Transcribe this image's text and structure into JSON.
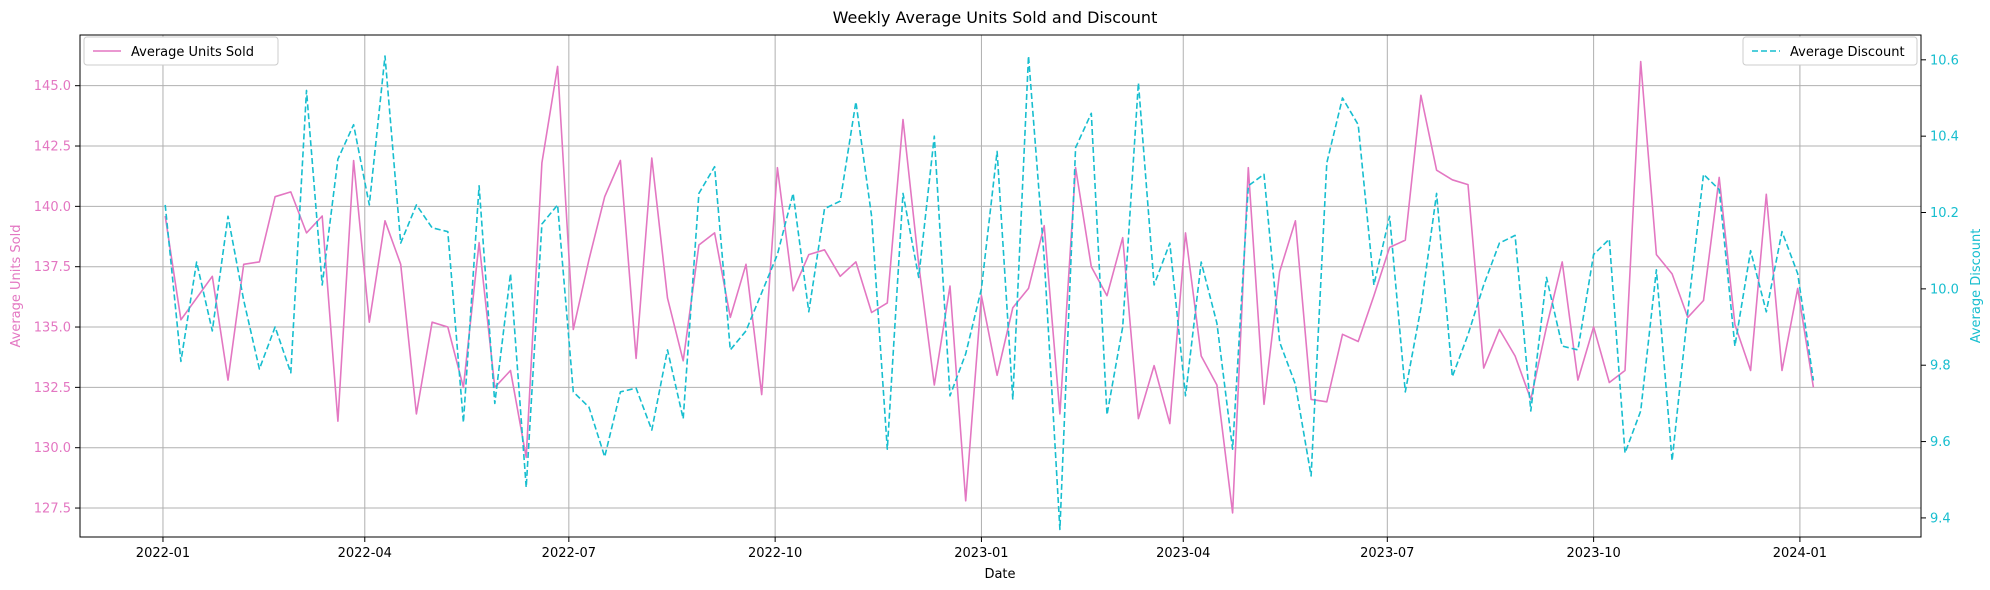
{
  "chart_data": {
    "type": "line",
    "title": "Weekly Average Units Sold and Discount",
    "xlabel": "Date",
    "ylabel_left": "Average Units Sold",
    "ylabel_right": "Average Discount",
    "xlim": [
      "2021-11-25",
      "2024-02-24"
    ],
    "ylim_left": [
      126.3,
      147.1
    ],
    "ylim_right": [
      9.35,
      10.665
    ],
    "x_ticks": [
      "2022-01",
      "2022-04",
      "2022-07",
      "2022-10",
      "2023-01",
      "2023-04",
      "2023-07",
      "2023-10",
      "2024-01"
    ],
    "x_tick_dates": [
      "2022-01-01",
      "2022-04-01",
      "2022-07-01",
      "2022-10-01",
      "2023-01-01",
      "2023-04-01",
      "2023-07-01",
      "2023-10-01",
      "2024-01-01"
    ],
    "y_ticks_left": [
      "127.5",
      "130.0",
      "132.5",
      "135.0",
      "137.5",
      "140.0",
      "142.5",
      "145.0"
    ],
    "y_ticks_right": [
      "9.4",
      "9.6",
      "9.8",
      "10.0",
      "10.2",
      "10.4",
      "10.6"
    ],
    "grid": true,
    "colors": {
      "units": "#e377c2",
      "discount": "#17becf"
    },
    "legend": {
      "units": {
        "label": "Average Units Sold",
        "position": "top-left"
      },
      "discount": {
        "label": "Average Discount",
        "position": "top-right"
      }
    },
    "x": [
      "2022-01-02",
      "2022-01-09",
      "2022-01-16",
      "2022-01-23",
      "2022-01-30",
      "2022-02-06",
      "2022-02-13",
      "2022-02-20",
      "2022-02-27",
      "2022-03-06",
      "2022-03-13",
      "2022-03-20",
      "2022-03-27",
      "2022-04-03",
      "2022-04-10",
      "2022-04-17",
      "2022-04-24",
      "2022-05-01",
      "2022-05-08",
      "2022-05-15",
      "2022-05-22",
      "2022-05-29",
      "2022-06-05",
      "2022-06-12",
      "2022-06-19",
      "2022-06-26",
      "2022-07-03",
      "2022-07-10",
      "2022-07-17",
      "2022-07-24",
      "2022-07-31",
      "2022-08-07",
      "2022-08-14",
      "2022-08-21",
      "2022-08-28",
      "2022-09-04",
      "2022-09-11",
      "2022-09-18",
      "2022-09-25",
      "2022-10-02",
      "2022-10-09",
      "2022-10-16",
      "2022-10-23",
      "2022-10-30",
      "2022-11-06",
      "2022-11-13",
      "2022-11-20",
      "2022-11-27",
      "2022-12-04",
      "2022-12-11",
      "2022-12-18",
      "2022-12-25",
      "2023-01-01",
      "2023-01-08",
      "2023-01-15",
      "2023-01-22",
      "2023-01-29",
      "2023-02-05",
      "2023-02-12",
      "2023-02-19",
      "2023-02-26",
      "2023-03-05",
      "2023-03-12",
      "2023-03-19",
      "2023-03-26",
      "2023-04-02",
      "2023-04-09",
      "2023-04-16",
      "2023-04-23",
      "2023-04-30",
      "2023-05-07",
      "2023-05-14",
      "2023-05-21",
      "2023-05-28",
      "2023-06-04",
      "2023-06-11",
      "2023-06-18",
      "2023-06-25",
      "2023-07-02",
      "2023-07-09",
      "2023-07-16",
      "2023-07-23",
      "2023-07-30",
      "2023-08-06",
      "2023-08-13",
      "2023-08-20",
      "2023-08-27",
      "2023-09-03",
      "2023-09-10",
      "2023-09-17",
      "2023-09-24",
      "2023-10-01",
      "2023-10-08",
      "2023-10-15",
      "2023-10-22",
      "2023-10-29",
      "2023-11-05",
      "2023-11-12",
      "2023-11-19",
      "2023-11-26",
      "2023-12-03",
      "2023-12-10",
      "2023-12-17",
      "2023-12-24",
      "2023-12-31",
      "2024-01-07"
    ],
    "series": [
      {
        "name": "Average Units Sold",
        "axis": "left",
        "values": [
          139.6,
          135.3,
          136.2,
          137.1,
          132.8,
          137.6,
          137.7,
          140.4,
          140.6,
          138.9,
          139.6,
          131.1,
          141.9,
          135.2,
          139.4,
          137.6,
          131.4,
          135.2,
          135.0,
          132.5,
          138.5,
          132.5,
          133.2,
          129.6,
          141.8,
          145.8,
          134.9,
          137.8,
          140.4,
          141.9,
          133.7,
          142.0,
          136.2,
          133.6,
          138.4,
          138.9,
          135.4,
          137.6,
          132.2,
          141.6,
          136.5,
          138.0,
          138.2,
          137.1,
          137.7,
          135.6,
          136.0,
          143.6,
          137.6,
          132.6,
          136.7,
          127.8,
          136.3,
          133.0,
          135.8,
          136.6,
          139.2,
          131.4,
          141.6,
          137.5,
          136.3,
          138.7,
          131.2,
          133.4,
          131.0,
          138.9,
          133.8,
          132.6,
          127.3,
          141.6,
          131.8,
          137.3,
          139.4,
          132.0,
          131.9,
          134.7,
          134.4,
          136.3,
          138.3,
          138.6,
          144.6,
          141.5,
          141.1,
          140.9,
          133.3,
          134.9,
          133.8,
          132.0,
          135.0,
          137.7,
          132.8,
          135.0,
          132.7,
          133.2,
          146.0,
          138.0,
          137.2,
          135.4,
          136.1,
          141.2,
          135.1,
          133.2,
          140.5,
          133.2,
          136.6,
          132.5
        ]
      },
      {
        "name": "Average Discount",
        "axis": "right",
        "values": [
          10.22,
          9.81,
          10.07,
          9.89,
          10.19,
          9.97,
          9.79,
          9.9,
          9.78,
          10.52,
          10.01,
          10.34,
          10.43,
          10.22,
          10.61,
          10.12,
          10.22,
          10.16,
          10.15,
          9.65,
          10.27,
          9.7,
          10.04,
          9.48,
          10.17,
          10.22,
          9.73,
          9.69,
          9.56,
          9.73,
          9.74,
          9.63,
          9.84,
          9.66,
          10.25,
          10.32,
          9.84,
          9.89,
          9.99,
          10.09,
          10.25,
          9.94,
          10.21,
          10.23,
          10.49,
          10.19,
          9.58,
          10.25,
          10.03,
          10.4,
          9.72,
          9.83,
          10.0,
          10.36,
          9.71,
          10.61,
          10.08,
          9.37,
          10.37,
          10.46,
          9.67,
          9.9,
          10.54,
          10.01,
          10.12,
          9.72,
          10.07,
          9.91,
          9.58,
          10.27,
          10.3,
          9.86,
          9.75,
          9.51,
          10.33,
          10.5,
          10.43,
          10.01,
          10.19,
          9.73,
          9.95,
          10.25,
          9.77,
          9.88,
          10.01,
          10.12,
          10.14,
          9.68,
          10.03,
          9.85,
          9.84,
          10.09,
          10.13,
          9.57,
          9.68,
          10.05,
          9.55,
          9.94,
          10.3,
          10.26,
          9.85,
          10.1,
          9.94,
          10.15,
          10.04,
          9.76
        ]
      }
    ]
  }
}
